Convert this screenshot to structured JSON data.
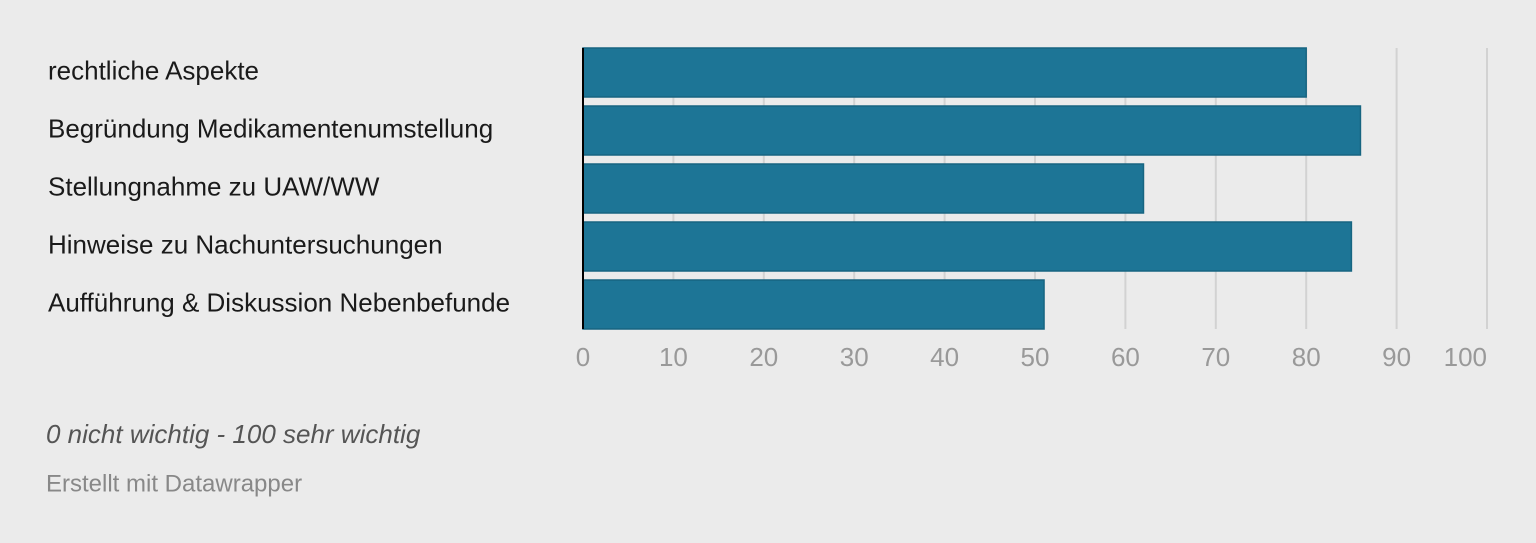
{
  "chart_data": {
    "type": "bar",
    "orientation": "horizontal",
    "categories": [
      "rechtliche Aspekte",
      "Begründung Medikamentenumstellung",
      "Stellungnahme zu UAW/WW",
      "Hinweise zu Nachuntersuchungen",
      "Aufführung & Diskussion Nebenbefunde"
    ],
    "values": [
      80,
      86,
      62,
      85,
      51
    ],
    "color": "#1d7596",
    "xlim": [
      0,
      100
    ],
    "xticks": [
      0,
      10,
      20,
      30,
      40,
      50,
      60,
      70,
      80,
      90,
      100
    ],
    "grid": true,
    "notes": "0 nicht wichtig - 100 sehr wichtig",
    "source": "Erstellt mit Datawrapper"
  }
}
